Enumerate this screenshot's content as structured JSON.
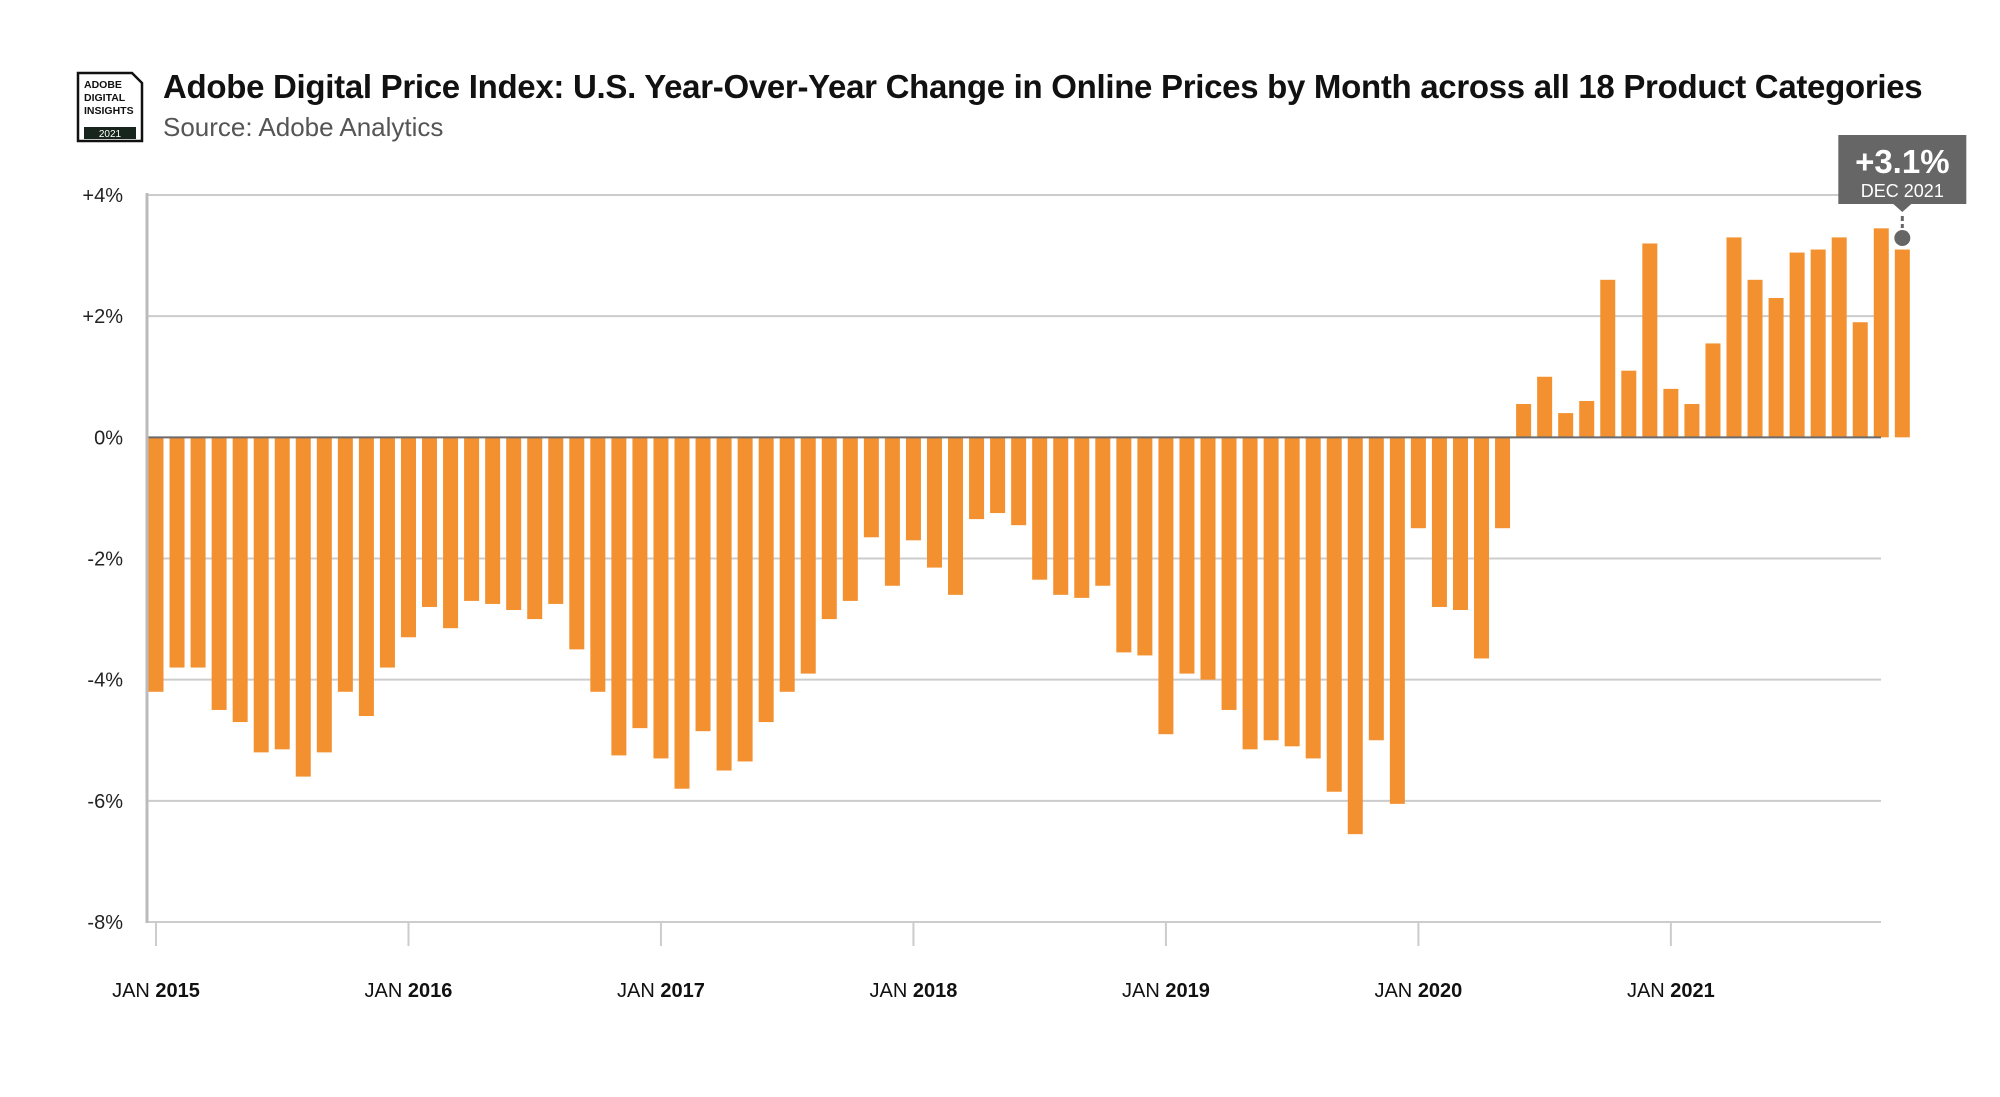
{
  "header": {
    "logo": {
      "lines": [
        "ADOBE",
        "DIGITAL",
        "INSIGHTS"
      ],
      "year": "2021"
    },
    "title": "Adobe Digital Price Index: U.S. Year-Over-Year Change in Online Prices by Month across all 18 Product Categories",
    "subtitle": "Source: Adobe Analytics"
  },
  "colors": {
    "bar": "#F39130",
    "callout": "#666666",
    "grid": "#cccccc",
    "axis": "#bbbbbb",
    "zero_line": "#6b6b6b"
  },
  "callout": {
    "value": "+3.1%",
    "label": "DEC 2021",
    "month_index": 83
  },
  "chart_data": {
    "type": "bar",
    "title": "Adobe Digital Price Index: U.S. Year-Over-Year Change in Online Prices by Month across all 18 Product Categories",
    "subtitle": "Source: Adobe Analytics",
    "xlabel": "",
    "ylabel": "",
    "ylim": [
      -8,
      4
    ],
    "yticks": [
      4,
      2,
      0,
      -2,
      -4,
      -6,
      -8
    ],
    "ytick_labels": [
      "+4%",
      "+2%",
      "0%",
      "-2%",
      "-4%",
      "-6%",
      "-8%"
    ],
    "grid": true,
    "x_start": "Jan 2015",
    "x_end": "Dec 2021",
    "xtick_labels": [
      {
        "month": "JAN",
        "year": "2015",
        "index": 0
      },
      {
        "month": "JAN",
        "year": "2016",
        "index": 12
      },
      {
        "month": "JAN",
        "year": "2017",
        "index": 24
      },
      {
        "month": "JAN",
        "year": "2018",
        "index": 36
      },
      {
        "month": "JAN",
        "year": "2019",
        "index": 48
      },
      {
        "month": "JAN",
        "year": "2020",
        "index": 60
      },
      {
        "month": "JAN",
        "year": "2021",
        "index": 72
      }
    ],
    "series": [
      {
        "name": "YoY change in online prices (%)",
        "values": [
          -4.2,
          -3.8,
          -3.8,
          -4.5,
          -4.7,
          -5.2,
          -5.15,
          -5.6,
          -5.2,
          -4.2,
          -4.6,
          -3.8,
          -3.3,
          -2.8,
          -3.15,
          -2.7,
          -2.75,
          -2.85,
          -3.0,
          -2.75,
          -3.5,
          -4.2,
          -5.25,
          -4.8,
          -5.3,
          -5.8,
          -4.85,
          -5.5,
          -5.35,
          -4.7,
          -4.2,
          -3.9,
          -3.0,
          -2.7,
          -1.65,
          -2.45,
          -1.7,
          -2.15,
          -2.6,
          -1.35,
          -1.25,
          -1.45,
          -2.35,
          -2.6,
          -2.65,
          -2.45,
          -3.55,
          -3.6,
          -4.9,
          -3.9,
          -4.0,
          -4.5,
          -5.15,
          -5.0,
          -5.1,
          -5.3,
          -5.85,
          -6.55,
          -5.0,
          -6.05,
          -1.5,
          -2.8,
          -2.85,
          -3.65,
          -1.5,
          0.55,
          1.0,
          0.4,
          0.6,
          2.6,
          1.1,
          3.2,
          0.8,
          0.55,
          1.55,
          3.3,
          2.6,
          2.3,
          3.05,
          3.1,
          3.3,
          1.9,
          3.45,
          3.1
        ]
      }
    ],
    "annotations": [
      {
        "text": "+3.1%",
        "sublabel": "DEC 2021",
        "target": "Dec 2021"
      }
    ]
  }
}
